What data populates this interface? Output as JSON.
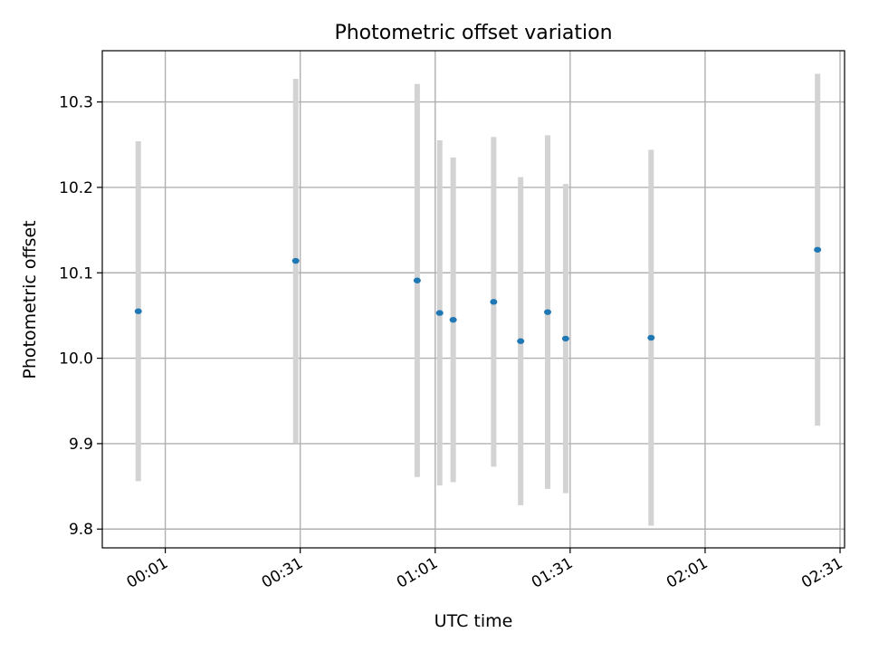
{
  "chart_data": {
    "type": "scatter",
    "title": "Photometric offset variation",
    "xlabel": "UTC time",
    "ylabel": "Photometric offset",
    "x_ticks": [
      "00:01",
      "00:31",
      "01:01",
      "01:31",
      "02:01",
      "02:31"
    ],
    "y_ticks": [
      "9.8",
      "9.9",
      "10.0",
      "10.1",
      "10.2",
      "10.3"
    ],
    "xlim": [
      "23:47",
      "02:32"
    ],
    "ylim": [
      9.778,
      10.36
    ],
    "grid": true,
    "marker_color": "#1f77b4",
    "errorbar_color": "#d3d3d3",
    "series": [
      {
        "points": [
          {
            "x": "23:55",
            "y": 10.055,
            "err": 0.199
          },
          {
            "x": "00:30",
            "y": 10.114,
            "err": 0.213
          },
          {
            "x": "00:57",
            "y": 10.091,
            "err": 0.23
          },
          {
            "x": "01:02",
            "y": 10.053,
            "err": 0.202
          },
          {
            "x": "01:05",
            "y": 10.045,
            "err": 0.19
          },
          {
            "x": "01:14",
            "y": 10.066,
            "err": 0.193
          },
          {
            "x": "01:20",
            "y": 10.02,
            "err": 0.192
          },
          {
            "x": "01:26",
            "y": 10.054,
            "err": 0.207
          },
          {
            "x": "01:30",
            "y": 10.023,
            "err": 0.181
          },
          {
            "x": "01:49",
            "y": 10.024,
            "err": 0.22
          },
          {
            "x": "02:26",
            "y": 10.127,
            "err": 0.206
          }
        ]
      }
    ]
  }
}
